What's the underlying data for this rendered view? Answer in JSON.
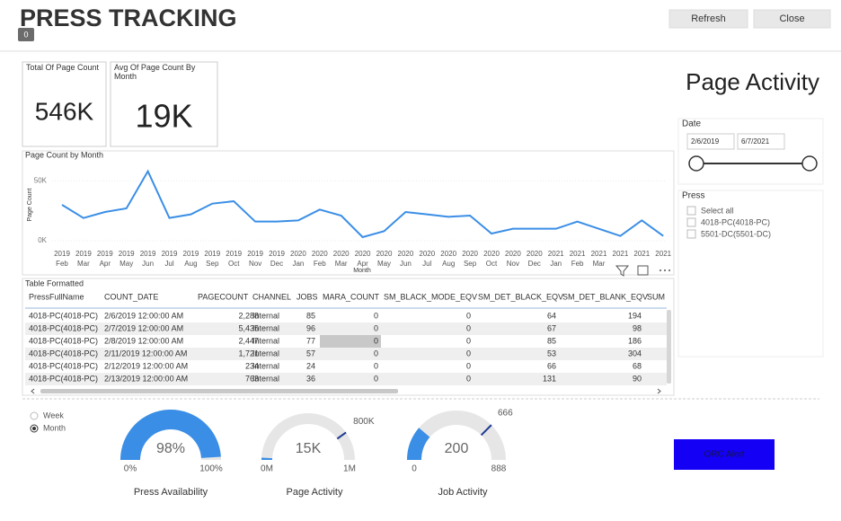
{
  "header": {
    "title": "PRESS TRACKING",
    "badge": "0",
    "buttons": [
      "Refresh",
      "Close"
    ]
  },
  "cards": [
    {
      "title": "Total Of Page Count",
      "value": "546K"
    },
    {
      "title": "Avg Of Page Count By Month",
      "value": "19K"
    }
  ],
  "page_heading": "Page Activity",
  "chart_data": {
    "type": "line",
    "title": "Page Count by Month",
    "x_label": "Month",
    "y_label": "Page Count",
    "categories": [
      [
        "2019",
        "Feb"
      ],
      [
        "2019",
        "Mar"
      ],
      [
        "2019",
        "Apr"
      ],
      [
        "2019",
        "May"
      ],
      [
        "2019",
        "Jun"
      ],
      [
        "2019",
        "Jul"
      ],
      [
        "2019",
        "Aug"
      ],
      [
        "2019",
        "Sep"
      ],
      [
        "2019",
        "Oct"
      ],
      [
        "2019",
        "Nov"
      ],
      [
        "2019",
        "Dec"
      ],
      [
        "2020",
        "Jan"
      ],
      [
        "2020",
        "Feb"
      ],
      [
        "2020",
        "Mar"
      ],
      [
        "2020",
        "Apr"
      ],
      [
        "2020",
        "May"
      ],
      [
        "2020",
        "Jun"
      ],
      [
        "2020",
        "Jul"
      ],
      [
        "2020",
        "Aug"
      ],
      [
        "2020",
        "Sep"
      ],
      [
        "2020",
        "Oct"
      ],
      [
        "2020",
        "Nov"
      ],
      [
        "2020",
        "Dec"
      ],
      [
        "2021",
        "Jan"
      ],
      [
        "2021",
        "Feb"
      ],
      [
        "2021",
        "Mar"
      ],
      [
        "2021"
      ],
      [
        "2021"
      ],
      [
        "2021"
      ]
    ],
    "values": [
      30000,
      19000,
      24000,
      27000,
      58000,
      19000,
      22000,
      31000,
      33000,
      16000,
      16000,
      17000,
      26000,
      21000,
      3000,
      8000,
      24000,
      22000,
      20000,
      21000,
      6000,
      10000,
      10000,
      10000,
      16000,
      10000,
      4000,
      17000,
      4000
    ],
    "color": "#3a8ee6",
    "ylim": [
      0,
      60000
    ],
    "yticks": [
      {
        "value": 0,
        "label": "0K"
      },
      {
        "value": 50000,
        "label": "50K"
      }
    ],
    "grid": true
  },
  "table": {
    "title": "Table Formatted",
    "columns": [
      "PressFullName",
      "COUNT_DATE",
      "PAGECOUNT",
      "CHANNEL",
      "JOBS",
      "MARA_COUNT",
      "SM_BLACK_MODE_EQV",
      "SM_DET_BLACK_EQV",
      "SM_DET_BLANK_EQV",
      "SUM"
    ],
    "rows": [
      [
        "4018-PC(4018-PC)",
        "2/6/2019 12:00:00 AM",
        "2,288",
        "Internal",
        "85",
        "0",
        "0",
        "64",
        "194"
      ],
      [
        "4018-PC(4018-PC)",
        "2/7/2019 12:00:00 AM",
        "5,435",
        "Internal",
        "96",
        "0",
        "0",
        "67",
        "98"
      ],
      [
        "4018-PC(4018-PC)",
        "2/8/2019 12:00:00 AM",
        "2,447",
        "Internal",
        "77",
        "0",
        "0",
        "85",
        "186"
      ],
      [
        "4018-PC(4018-PC)",
        "2/11/2019 12:00:00 AM",
        "1,721",
        "Internal",
        "57",
        "0",
        "0",
        "53",
        "304"
      ],
      [
        "4018-PC(4018-PC)",
        "2/12/2019 12:00:00 AM",
        "234",
        "Internal",
        "24",
        "0",
        "0",
        "66",
        "68"
      ],
      [
        "4018-PC(4018-PC)",
        "2/13/2019 12:00:00 AM",
        "763",
        "Internal",
        "36",
        "0",
        "0",
        "131",
        "90"
      ]
    ]
  },
  "date_slicer": {
    "title": "Date",
    "start": "2/6/2019",
    "end": "6/7/2021"
  },
  "press_slicer": {
    "title": "Press",
    "options": [
      "Select all",
      "4018-PC(4018-PC)",
      "5501-DC(5501-DC)"
    ]
  },
  "period": {
    "options": [
      "Week",
      "Month"
    ],
    "selected": 1
  },
  "gauges": [
    {
      "label": "Press Availability",
      "value": {
        "value": 98,
        "label": "98%"
      },
      "min": {
        "value": 0,
        "label": "0%"
      },
      "max": {
        "value": 100,
        "label": "100%"
      }
    },
    {
      "label": "Page Activity",
      "value": {
        "value": 15000,
        "label": "15K"
      },
      "min": {
        "value": 0,
        "label": "0M"
      },
      "max": {
        "value": 1000000,
        "label": "1M"
      },
      "target": {
        "value": 800000,
        "label": "800K"
      }
    },
    {
      "label": "Job Activity",
      "value": {
        "value": 200,
        "label": "200"
      },
      "min": 0,
      "max": 888,
      "target": 666
    }
  ],
  "alert_button": "ORC Alert"
}
